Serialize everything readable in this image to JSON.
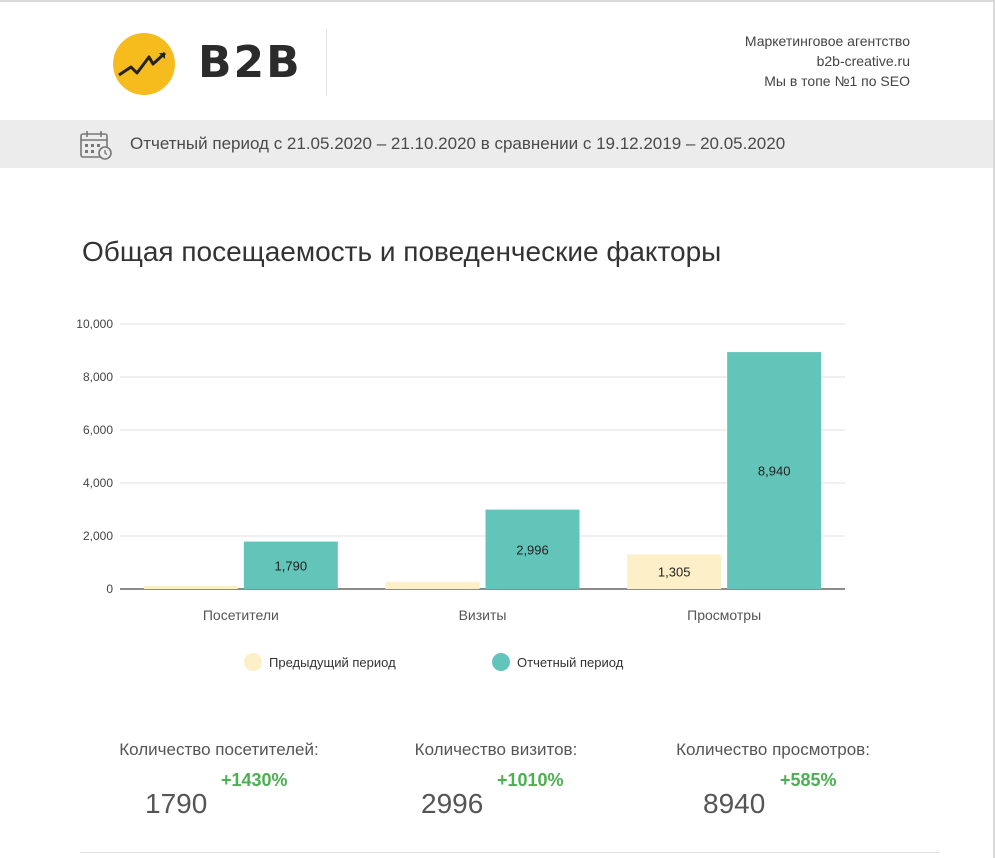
{
  "header": {
    "logo_text": "B2B",
    "agency_lines": [
      "Маркетинговое агентство",
      "b2b-creative.ru",
      "Мы в топе №1 по SEO"
    ]
  },
  "period": {
    "text": "Отчетный период с 21.05.2020 – 21.10.2020 в сравнении с 19.12.2019 – 20.05.2020"
  },
  "section_title": "Общая посещаемость и поведенческие факторы",
  "chart_data": {
    "type": "bar",
    "title": "Общая посещаемость и поведенческие факторы",
    "categories": [
      "Посетители",
      "Визиты",
      "Просмотры"
    ],
    "series": [
      {
        "name": "Предыдущий период",
        "color": "#fdefc8",
        "values": [
          117,
          271,
          1305
        ],
        "labels": [
          "",
          "",
          "1,305"
        ]
      },
      {
        "name": "Отчетный период",
        "color": "#63c5ba",
        "values": [
          1790,
          2996,
          8940
        ],
        "labels": [
          "1,790",
          "2,996",
          "8,940"
        ]
      }
    ],
    "ylim": [
      0,
      10000
    ],
    "yticks": [
      0,
      2000,
      4000,
      6000,
      8000,
      10000
    ],
    "ytick_labels": [
      "0",
      "2,000",
      "4,000",
      "6,000",
      "8,000",
      "10,000"
    ],
    "grid": true,
    "legend": "bottom"
  },
  "stats": [
    {
      "label": "Количество посетителей:",
      "value": "1790",
      "change": "+1430%"
    },
    {
      "label": "Количество визитов:",
      "value": "2996",
      "change": "+1010%"
    },
    {
      "label": "Количество просмотров:",
      "value": "8940",
      "change": "+585%"
    }
  ],
  "colors": {
    "accent_green": "#4caf50",
    "logo_yellow": "#f6bb1c"
  },
  "icons": {
    "logo": "lightning-chart-icon",
    "period": "calendar-clock-icon"
  }
}
